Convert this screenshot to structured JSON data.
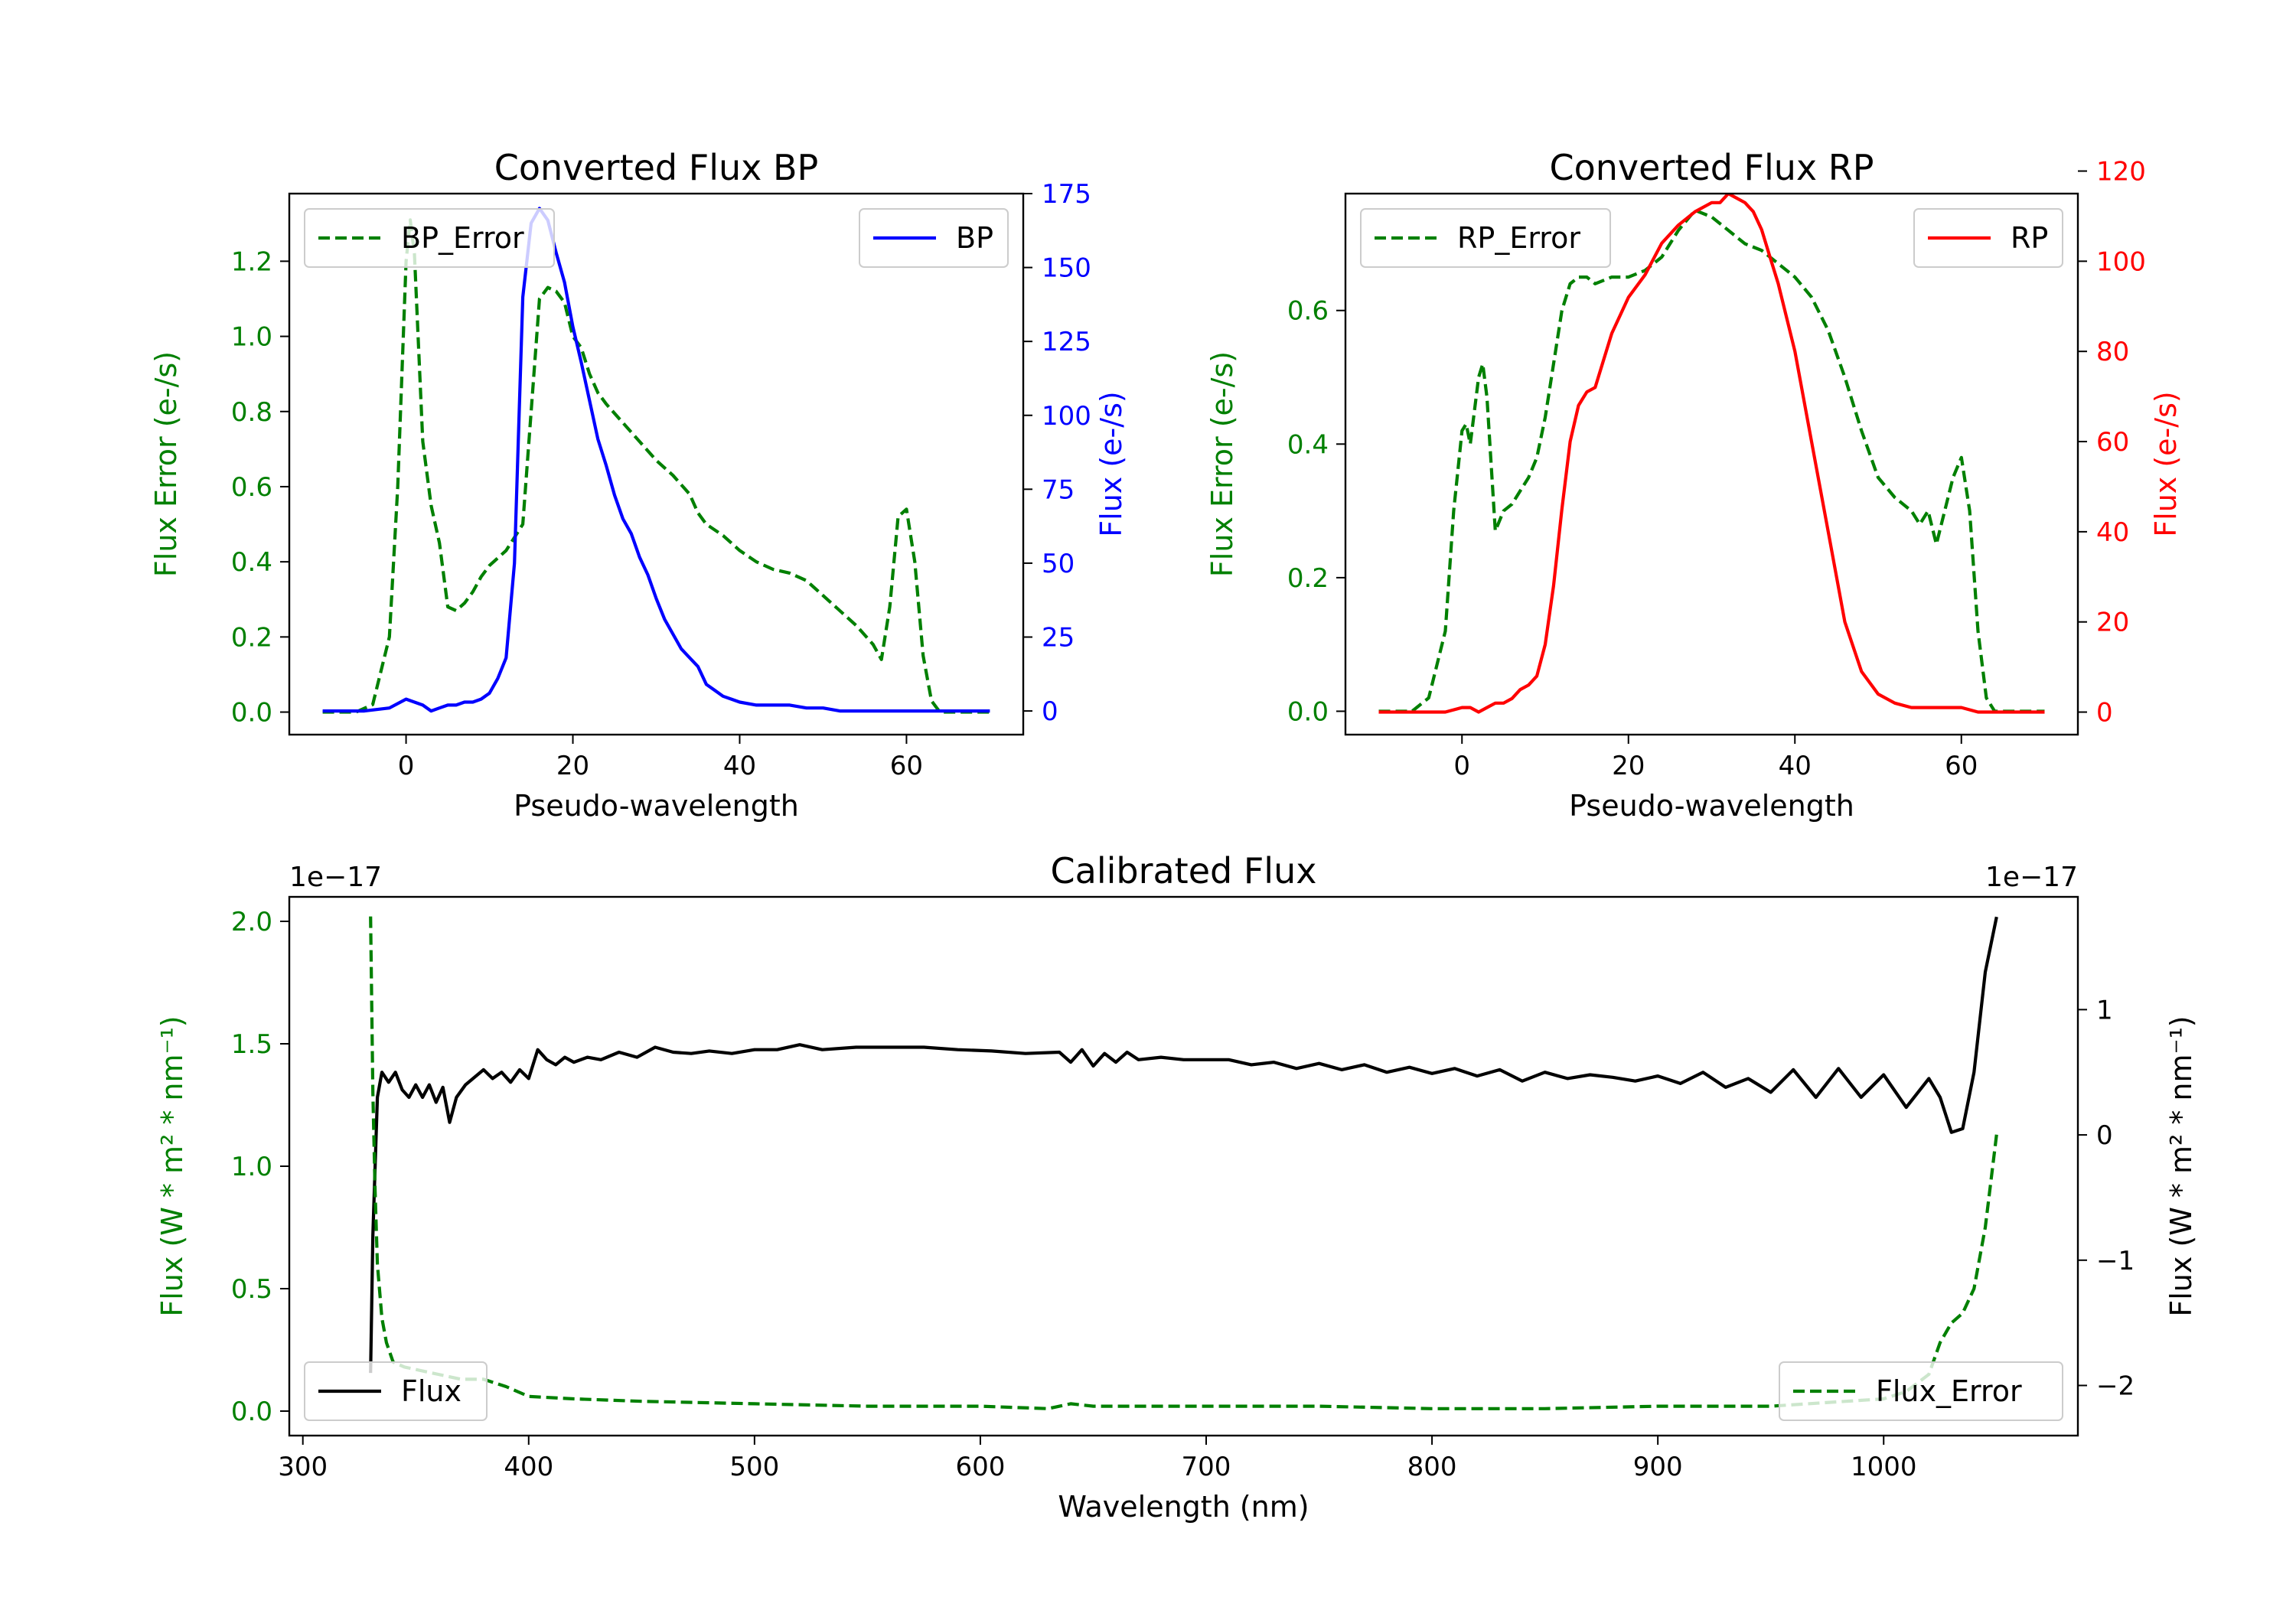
{
  "colors": {
    "green": "#008000",
    "blue": "#0000ff",
    "red": "#ff0000",
    "black": "#000000"
  },
  "chart_data": [
    {
      "type": "line",
      "title": "Converted Flux BP",
      "xlabel": "Pseudo-wavelength",
      "ylabel_left": "Flux Error (e-/s)",
      "ylabel_right": "Flux (e-/s)",
      "xlim": [
        -14,
        74
      ],
      "ylim_left": [
        -0.06,
        1.38
      ],
      "ylim_right": [
        -8,
        175
      ],
      "xticks": [
        0,
        20,
        40,
        60
      ],
      "yticks_left": [
        0.0,
        0.2,
        0.4,
        0.6,
        0.8,
        1.0,
        1.2
      ],
      "yticks_right": [
        0,
        25,
        50,
        75,
        100,
        125,
        150,
        175
      ],
      "legend_left": "BP_Error",
      "legend_right": "BP",
      "series": [
        {
          "name": "BP_Error",
          "axis": "left",
          "style": "dashed",
          "color": "green",
          "x": [
            -10,
            -6,
            -4,
            -2,
            -1,
            0,
            0.5,
            1,
            2,
            3,
            4,
            5,
            6,
            7,
            8,
            9,
            10,
            12,
            14,
            15,
            16,
            17,
            18,
            19,
            20,
            21,
            22,
            23,
            24,
            26,
            28,
            30,
            32,
            34,
            35,
            36,
            38,
            40,
            42,
            44,
            46,
            48,
            50,
            52,
            54,
            56,
            57,
            58,
            59,
            60,
            61,
            62,
            63,
            64,
            66,
            68,
            70
          ],
          "y": [
            0.0,
            0.0,
            0.02,
            0.2,
            0.6,
            1.2,
            1.31,
            1.22,
            0.72,
            0.55,
            0.45,
            0.28,
            0.27,
            0.29,
            0.32,
            0.36,
            0.39,
            0.43,
            0.5,
            0.8,
            1.1,
            1.13,
            1.12,
            1.09,
            1.0,
            0.97,
            0.9,
            0.85,
            0.82,
            0.77,
            0.72,
            0.67,
            0.63,
            0.58,
            0.53,
            0.5,
            0.47,
            0.43,
            0.4,
            0.38,
            0.37,
            0.35,
            0.31,
            0.27,
            0.23,
            0.18,
            0.14,
            0.28,
            0.52,
            0.54,
            0.4,
            0.15,
            0.03,
            0.0,
            0.0,
            0.0,
            0.0
          ]
        },
        {
          "name": "BP",
          "axis": "right",
          "style": "solid",
          "color": "blue",
          "x": [
            -10,
            -5,
            -2,
            0,
            1,
            2,
            3,
            4,
            5,
            6,
            7,
            8,
            9,
            10,
            11,
            12,
            13,
            14,
            15,
            16,
            17,
            18,
            19,
            20,
            21,
            22,
            23,
            24,
            25,
            26,
            27,
            28,
            29,
            30,
            31,
            32,
            33,
            34,
            35,
            36,
            37,
            38,
            39,
            40,
            42,
            44,
            46,
            48,
            50,
            52,
            54,
            56,
            58,
            60,
            62,
            64,
            66,
            68,
            70
          ],
          "y": [
            0,
            0,
            1,
            4,
            3,
            2,
            0,
            1,
            2,
            2,
            3,
            3,
            4,
            6,
            11,
            18,
            50,
            140,
            165,
            170,
            166,
            155,
            145,
            130,
            118,
            105,
            92,
            83,
            73,
            65,
            60,
            52,
            46,
            38,
            31,
            26,
            21,
            18,
            15,
            9,
            7,
            5,
            4,
            3,
            2,
            2,
            2,
            1,
            1,
            0,
            0,
            0,
            0,
            0,
            0,
            0,
            0,
            0,
            0
          ]
        }
      ]
    },
    {
      "type": "line",
      "title": "Converted Flux RP",
      "xlabel": "Pseudo-wavelength",
      "ylabel_left": "Flux Error (e-/s)",
      "ylabel_right": "Flux (e-/s)",
      "xlim": [
        -14,
        74
      ],
      "ylim_left": [
        -0.035,
        0.775
      ],
      "ylim_right": [
        -5,
        115
      ],
      "xticks": [
        0,
        20,
        40,
        60
      ],
      "yticks_left": [
        0.0,
        0.2,
        0.4,
        0.6
      ],
      "yticks_right": [
        0,
        20,
        40,
        60,
        80,
        100,
        120
      ],
      "legend_left": "RP_Error",
      "legend_right": "RP",
      "series": [
        {
          "name": "RP_Error",
          "axis": "left",
          "style": "dashed",
          "color": "green",
          "x": [
            -10,
            -6,
            -4,
            -2,
            -1,
            0,
            0.5,
            1,
            2,
            2.5,
            3,
            4,
            5,
            6,
            7,
            8,
            9,
            10,
            11,
            12,
            13,
            14,
            15,
            16,
            18,
            20,
            22,
            24,
            26,
            28,
            30,
            32,
            34,
            36,
            38,
            40,
            42,
            44,
            46,
            48,
            50,
            52,
            54,
            55,
            56,
            57,
            58,
            59,
            60,
            61,
            62,
            63,
            64,
            66,
            68,
            70
          ],
          "y": [
            0.0,
            0.0,
            0.02,
            0.12,
            0.3,
            0.42,
            0.43,
            0.4,
            0.5,
            0.52,
            0.47,
            0.27,
            0.3,
            0.31,
            0.33,
            0.35,
            0.38,
            0.44,
            0.52,
            0.6,
            0.64,
            0.65,
            0.65,
            0.64,
            0.65,
            0.65,
            0.66,
            0.68,
            0.72,
            0.75,
            0.74,
            0.72,
            0.7,
            0.69,
            0.67,
            0.65,
            0.62,
            0.57,
            0.5,
            0.42,
            0.35,
            0.32,
            0.3,
            0.28,
            0.3,
            0.25,
            0.3,
            0.35,
            0.38,
            0.3,
            0.12,
            0.02,
            0.0,
            0.0,
            0.0,
            0.0
          ]
        },
        {
          "name": "RP",
          "axis": "right",
          "style": "solid",
          "color": "red",
          "x": [
            -10,
            -5,
            -2,
            0,
            1,
            2,
            3,
            4,
            5,
            6,
            7,
            8,
            9,
            10,
            11,
            12,
            13,
            14,
            15,
            16,
            17,
            18,
            19,
            20,
            22,
            24,
            26,
            28,
            30,
            31,
            32,
            33,
            34,
            35,
            36,
            37,
            38,
            40,
            42,
            44,
            46,
            48,
            50,
            52,
            54,
            56,
            58,
            60,
            62,
            64,
            66,
            68,
            70
          ],
          "y": [
            0,
            0,
            0,
            1,
            1,
            0,
            1,
            2,
            2,
            3,
            5,
            6,
            8,
            15,
            28,
            45,
            60,
            68,
            71,
            72,
            78,
            84,
            88,
            92,
            97,
            104,
            108,
            111,
            113,
            113,
            115,
            114,
            113,
            111,
            107,
            101,
            95,
            80,
            60,
            40,
            20,
            9,
            4,
            2,
            1,
            1,
            1,
            1,
            0,
            0,
            0,
            0,
            0
          ]
        }
      ]
    },
    {
      "type": "line",
      "title": "Calibrated Flux",
      "xlabel": "Wavelength (nm)",
      "ylabel_left": "Flux (W * m² * nm⁻¹)",
      "ylabel_right": "Flux (W * m² * nm⁻¹)",
      "offset_left": "1e−17",
      "offset_right": "1e−17",
      "xlim": [
        294,
        1086
      ],
      "ylim_left": [
        -0.1,
        2.1
      ],
      "ylim_right": [
        -2.4,
        1.9
      ],
      "xticks": [
        300,
        400,
        500,
        600,
        700,
        800,
        900,
        1000
      ],
      "yticks_left": [
        0.0,
        0.5,
        1.0,
        1.5,
        2.0
      ],
      "yticks_right": [
        -2,
        -1,
        0,
        1
      ],
      "ytick_labels_right": [
        "−2",
        "−1",
        "0",
        "1"
      ],
      "legend_left": "Flux",
      "legend_right": "Flux_Error",
      "series": [
        {
          "name": "Flux",
          "axis": "right",
          "style": "solid",
          "color": "black",
          "x": [
            330,
            331,
            333,
            335,
            338,
            341,
            344,
            347,
            350,
            353,
            356,
            359,
            362,
            365,
            368,
            372,
            376,
            380,
            384,
            388,
            392,
            396,
            400,
            404,
            408,
            412,
            416,
            420,
            426,
            432,
            440,
            448,
            456,
            464,
            472,
            480,
            490,
            500,
            510,
            520,
            530,
            545,
            560,
            575,
            590,
            605,
            620,
            635,
            640,
            645,
            650,
            655,
            660,
            665,
            670,
            680,
            690,
            700,
            710,
            720,
            730,
            740,
            750,
            760,
            770,
            780,
            790,
            800,
            810,
            820,
            830,
            840,
            850,
            860,
            870,
            880,
            890,
            900,
            910,
            920,
            930,
            940,
            950,
            960,
            970,
            980,
            990,
            1000,
            1010,
            1020,
            1025,
            1030,
            1035,
            1040,
            1045,
            1050
          ],
          "y": [
            -1.9,
            -0.8,
            0.3,
            0.5,
            0.42,
            0.5,
            0.36,
            0.3,
            0.4,
            0.3,
            0.4,
            0.26,
            0.38,
            0.1,
            0.3,
            0.4,
            0.46,
            0.52,
            0.45,
            0.5,
            0.42,
            0.52,
            0.45,
            0.68,
            0.6,
            0.56,
            0.62,
            0.58,
            0.62,
            0.6,
            0.66,
            0.62,
            0.7,
            0.66,
            0.65,
            0.67,
            0.65,
            0.68,
            0.68,
            0.72,
            0.68,
            0.7,
            0.7,
            0.7,
            0.68,
            0.67,
            0.65,
            0.66,
            0.58,
            0.68,
            0.55,
            0.65,
            0.58,
            0.66,
            0.6,
            0.62,
            0.6,
            0.6,
            0.6,
            0.56,
            0.58,
            0.53,
            0.57,
            0.52,
            0.56,
            0.5,
            0.54,
            0.49,
            0.53,
            0.47,
            0.52,
            0.43,
            0.5,
            0.45,
            0.48,
            0.46,
            0.43,
            0.47,
            0.41,
            0.5,
            0.38,
            0.45,
            0.34,
            0.52,
            0.3,
            0.53,
            0.3,
            0.48,
            0.22,
            0.45,
            0.3,
            0.02,
            0.05,
            0.5,
            1.3,
            1.74
          ]
        },
        {
          "name": "Flux_Error",
          "axis": "left",
          "style": "dashed",
          "color": "green",
          "x": [
            330,
            331,
            332,
            333,
            335,
            337,
            340,
            345,
            350,
            355,
            360,
            370,
            380,
            390,
            400,
            420,
            450,
            500,
            550,
            600,
            630,
            640,
            650,
            700,
            750,
            800,
            850,
            900,
            950,
            1000,
            1010,
            1020,
            1025,
            1030,
            1035,
            1040,
            1045,
            1050
          ],
          "y": [
            2.02,
            1.3,
            0.9,
            0.6,
            0.38,
            0.28,
            0.2,
            0.18,
            0.17,
            0.16,
            0.15,
            0.13,
            0.13,
            0.1,
            0.06,
            0.05,
            0.04,
            0.03,
            0.02,
            0.02,
            0.01,
            0.03,
            0.02,
            0.02,
            0.02,
            0.01,
            0.01,
            0.02,
            0.02,
            0.05,
            0.08,
            0.15,
            0.28,
            0.36,
            0.4,
            0.5,
            0.75,
            1.13
          ]
        }
      ]
    }
  ]
}
